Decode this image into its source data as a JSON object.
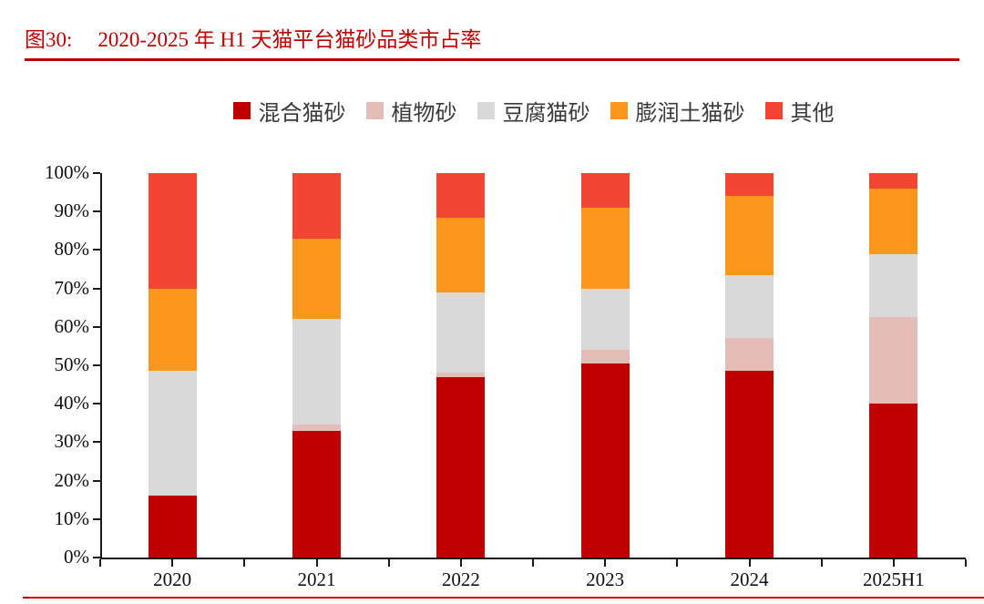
{
  "header": {
    "figure_label": "图30:",
    "title": "2020-2025 年 H1 天猫平台猫砂品类市占率"
  },
  "colors": {
    "accent_red": "#C00000",
    "axis": "#1A1A1A",
    "bottom_rule_red": "#C90000"
  },
  "chart_data": {
    "type": "bar",
    "stacked": true,
    "title": "2020-2025 年 H1 天猫平台猫砂品类市占率",
    "xlabel": "",
    "ylabel": "",
    "ylim": [
      0,
      100
    ],
    "grid": false,
    "legend_position": "top",
    "yticks": [
      "0%",
      "10%",
      "20%",
      "30%",
      "40%",
      "50%",
      "60%",
      "70%",
      "80%",
      "90%",
      "100%"
    ],
    "categories": [
      "2020",
      "2021",
      "2022",
      "2023",
      "2024",
      "2025H1"
    ],
    "series": [
      {
        "name": "混合猫砂",
        "color": "#C00000",
        "values": [
          16,
          33,
          47,
          50.5,
          48.5,
          40
        ]
      },
      {
        "name": "植物砂",
        "color": "#E5BDB8",
        "values": [
          0,
          1.5,
          1,
          3.5,
          8.5,
          22.5
        ]
      },
      {
        "name": "豆腐猫砂",
        "color": "#D9D9D9",
        "values": [
          32.5,
          27.5,
          21,
          16,
          16.5,
          16.5
        ]
      },
      {
        "name": "膨润土猫砂",
        "color": "#FC971E",
        "values": [
          21.5,
          21,
          19.5,
          21,
          20.5,
          17
        ]
      },
      {
        "name": "其他",
        "color": "#F24632",
        "values": [
          30,
          17,
          11.5,
          9,
          6,
          4
        ]
      }
    ]
  }
}
